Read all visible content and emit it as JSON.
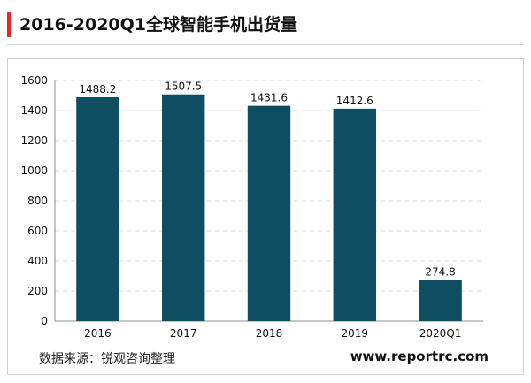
{
  "header": {
    "title": "2016-2020Q1全球智能手机出货量"
  },
  "footer": {
    "source": "数据来源：锐观咨询整理",
    "website": "www.reportrc.com"
  },
  "colors": {
    "accent": "#e8262b",
    "bar": "#0f4d63",
    "grid": "#d9d9d9",
    "axis": "#8c8c8c",
    "text": "#111111"
  },
  "chart_data": {
    "type": "bar",
    "title": "",
    "xlabel": "",
    "ylabel": "",
    "categories": [
      "2016",
      "2017",
      "2018",
      "2019",
      "2020Q1"
    ],
    "values": [
      1488.2,
      1507.5,
      1431.6,
      1412.6,
      274.8
    ],
    "value_labels": [
      "1488.2",
      "1507.5",
      "1431.6",
      "1412.6",
      "274.8"
    ],
    "ylim": [
      0,
      1600
    ],
    "yticks": [
      0,
      200,
      400,
      600,
      800,
      1000,
      1200,
      1400,
      1600
    ],
    "grid": true,
    "grid_style": "dashed",
    "legend": "none"
  }
}
